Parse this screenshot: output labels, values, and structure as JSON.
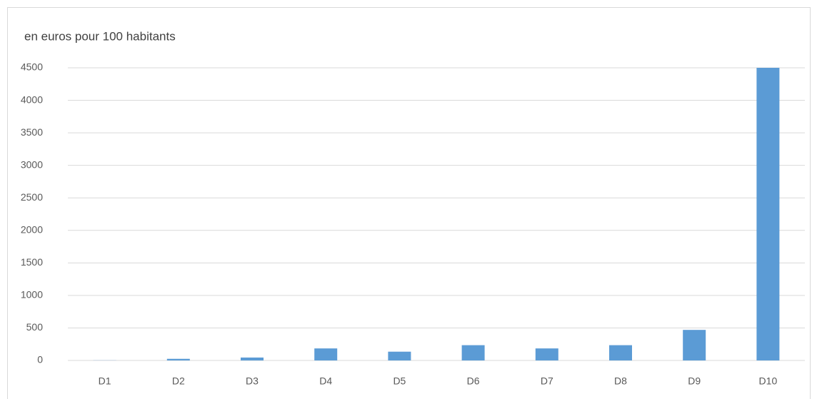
{
  "chart_data": {
    "type": "bar",
    "y_label": "en euros pour 100 habitants",
    "categories": [
      "D1",
      "D2",
      "D3",
      "D4",
      "D5",
      "D6",
      "D7",
      "D8",
      "D9",
      "D10"
    ],
    "values": [
      2,
      25,
      45,
      185,
      135,
      235,
      185,
      235,
      470,
      4500
    ],
    "color": "#5b9bd5",
    "ylim": [
      0,
      4500
    ],
    "yticks": [
      0,
      500,
      1000,
      1500,
      2000,
      2500,
      3000,
      3500,
      4000,
      4500
    ],
    "grid": true
  }
}
